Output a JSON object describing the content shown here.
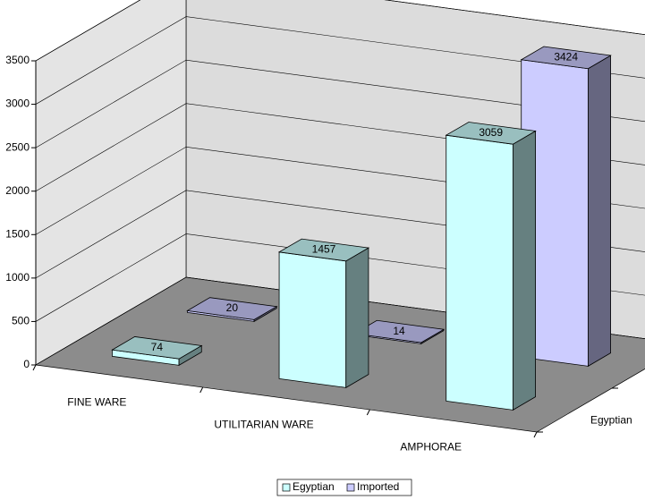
{
  "chart_data": {
    "type": "bar3d",
    "categories": [
      "FINE WARE",
      "UTILITARIAN WARE",
      "AMPHORAE"
    ],
    "series": [
      {
        "name": "Egyptian",
        "color": "#ccffff",
        "values": [
          74,
          1457,
          3059
        ]
      },
      {
        "name": "Imported",
        "color": "#ccccff",
        "values": [
          20,
          14,
          3424
        ]
      }
    ],
    "ylim": [
      0,
      3500
    ],
    "yticks": [
      0,
      500,
      1000,
      1500,
      2000,
      2500,
      3000,
      3500
    ],
    "grid": true,
    "legend": "bottom"
  }
}
